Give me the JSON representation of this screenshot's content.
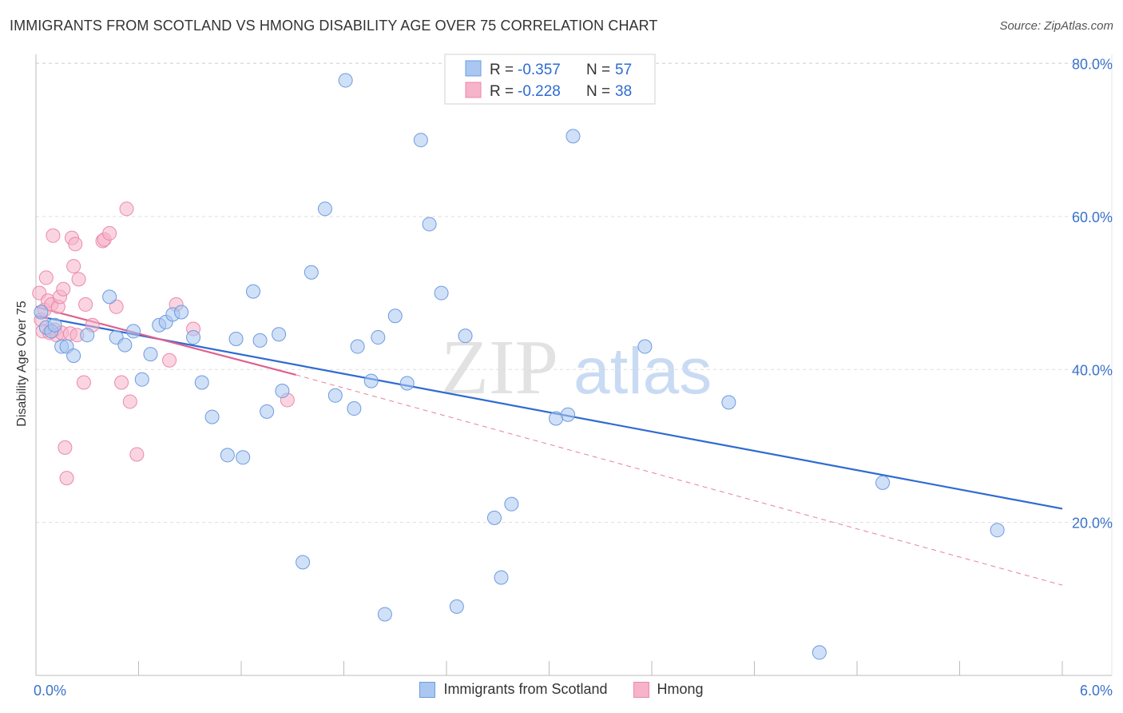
{
  "title": "IMMIGRANTS FROM SCOTLAND VS HMONG DISABILITY AGE OVER 75 CORRELATION CHART",
  "source": "Source: ZipAtlas.com",
  "watermark": {
    "zip": "ZIP",
    "atlas": "atlas"
  },
  "colors": {
    "blue": "#2e6bd1",
    "blue_fill": "#a9c7f0",
    "blue_stroke": "#6d9be0",
    "pink": "#e0608f",
    "pink_fill": "#f6b3c9",
    "pink_stroke": "#eb89aa",
    "grid": "#dddddd",
    "axis_text": "#3b73c9"
  },
  "legend": {
    "scotland": {
      "r_label": "R = ",
      "r_value": "-0.357",
      "n_label": "N = ",
      "n_value": "57"
    },
    "hmong": {
      "r_label": "R = ",
      "r_value": "-0.228",
      "n_label": "N = ",
      "n_value": "38"
    }
  },
  "chart_data": {
    "type": "scatter",
    "title": "IMMIGRANTS FROM SCOTLAND VS HMONG DISABILITY AGE OVER 75 CORRELATION CHART",
    "xlabel": "",
    "ylabel": "Disability Age Over 75",
    "xlim": [
      0,
      6
    ],
    "ylim": [
      0,
      82
    ],
    "x_tick_labels": [
      "0.0%",
      "6.0%"
    ],
    "y_ticks": [
      20,
      40,
      60,
      80
    ],
    "y_tick_labels": [
      "20.0%",
      "40.0%",
      "60.0%",
      "80.0%"
    ],
    "legend_position": "top-center",
    "series": [
      {
        "name": "Immigrants from Scotland",
        "r": -0.357,
        "n": 57,
        "trend": {
          "x": [
            0.0,
            6.0
          ],
          "y": [
            47.0,
            21.8
          ],
          "style": "solid"
        },
        "points": [
          [
            0.03,
            47.5
          ],
          [
            0.06,
            45.5
          ],
          [
            0.09,
            45.0
          ],
          [
            0.11,
            45.8
          ],
          [
            0.15,
            43.0
          ],
          [
            0.18,
            43.0
          ],
          [
            0.22,
            41.8
          ],
          [
            0.3,
            44.5
          ],
          [
            0.43,
            49.5
          ],
          [
            0.47,
            44.2
          ],
          [
            0.52,
            43.2
          ],
          [
            0.57,
            45.0
          ],
          [
            0.62,
            38.7
          ],
          [
            0.67,
            42.0
          ],
          [
            0.72,
            45.8
          ],
          [
            0.76,
            46.2
          ],
          [
            0.8,
            47.2
          ],
          [
            0.85,
            47.5
          ],
          [
            0.92,
            44.2
          ],
          [
            0.97,
            38.3
          ],
          [
            1.03,
            33.8
          ],
          [
            1.12,
            28.8
          ],
          [
            1.17,
            44.0
          ],
          [
            1.21,
            28.5
          ],
          [
            1.27,
            50.2
          ],
          [
            1.31,
            43.8
          ],
          [
            1.35,
            34.5
          ],
          [
            1.42,
            44.6
          ],
          [
            1.44,
            37.2
          ],
          [
            1.56,
            14.8
          ],
          [
            1.61,
            52.7
          ],
          [
            1.69,
            61.0
          ],
          [
            1.75,
            36.6
          ],
          [
            1.81,
            77.8
          ],
          [
            1.86,
            34.9
          ],
          [
            1.88,
            43.0
          ],
          [
            1.96,
            38.5
          ],
          [
            2.0,
            44.2
          ],
          [
            2.04,
            8.0
          ],
          [
            2.1,
            47.0
          ],
          [
            2.17,
            38.2
          ],
          [
            2.25,
            70.0
          ],
          [
            2.3,
            59.0
          ],
          [
            2.37,
            50.0
          ],
          [
            2.46,
            9.0
          ],
          [
            2.51,
            44.4
          ],
          [
            2.68,
            20.6
          ],
          [
            2.72,
            12.8
          ],
          [
            2.78,
            22.4
          ],
          [
            3.04,
            33.6
          ],
          [
            3.11,
            34.1
          ],
          [
            3.14,
            70.5
          ],
          [
            3.56,
            43.0
          ],
          [
            4.05,
            35.7
          ],
          [
            4.58,
            3.0
          ],
          [
            4.95,
            25.2
          ],
          [
            5.62,
            19.0
          ]
        ]
      },
      {
        "name": "Hmong",
        "r": -0.228,
        "n": 38,
        "trend_solid": {
          "x": [
            0.0,
            1.52
          ],
          "y": [
            48.2,
            39.3
          ],
          "style": "solid"
        },
        "trend_dashed": {
          "x": [
            1.52,
            6.0
          ],
          "y": [
            39.3,
            11.8
          ],
          "style": "dashed"
        },
        "points": [
          [
            0.02,
            50.0
          ],
          [
            0.03,
            46.5
          ],
          [
            0.04,
            45.0
          ],
          [
            0.05,
            47.8
          ],
          [
            0.06,
            52.0
          ],
          [
            0.07,
            49.0
          ],
          [
            0.08,
            44.8
          ],
          [
            0.09,
            48.5
          ],
          [
            0.1,
            57.5
          ],
          [
            0.11,
            45.2
          ],
          [
            0.12,
            44.5
          ],
          [
            0.13,
            48.2
          ],
          [
            0.14,
            49.5
          ],
          [
            0.15,
            44.8
          ],
          [
            0.16,
            50.5
          ],
          [
            0.17,
            29.8
          ],
          [
            0.18,
            25.8
          ],
          [
            0.2,
            44.7
          ],
          [
            0.21,
            57.2
          ],
          [
            0.22,
            53.5
          ],
          [
            0.23,
            56.4
          ],
          [
            0.25,
            51.8
          ],
          [
            0.28,
            38.3
          ],
          [
            0.33,
            45.8
          ],
          [
            0.39,
            56.8
          ],
          [
            0.4,
            57.0
          ],
          [
            0.43,
            57.8
          ],
          [
            0.47,
            48.2
          ],
          [
            0.5,
            38.3
          ],
          [
            0.53,
            61.0
          ],
          [
            0.55,
            35.8
          ],
          [
            0.59,
            28.9
          ],
          [
            0.78,
            41.2
          ],
          [
            0.82,
            48.5
          ],
          [
            0.92,
            45.3
          ],
          [
            1.47,
            36.0
          ],
          [
            0.24,
            44.5
          ],
          [
            0.29,
            48.5
          ]
        ]
      }
    ]
  },
  "bottom_legend": [
    "Immigrants from Scotland",
    "Hmong"
  ]
}
